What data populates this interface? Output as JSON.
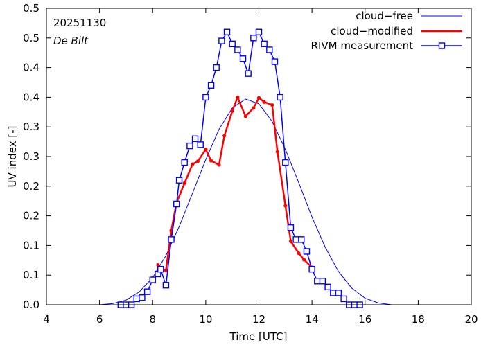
{
  "chart_data": {
    "type": "line",
    "xlabel": "Time  [UTC]",
    "ylabel": "UV index  [-]",
    "xlim": [
      4,
      20
    ],
    "ylim": [
      0,
      0.5
    ],
    "x_ticks": [
      4,
      6,
      8,
      10,
      12,
      14,
      16,
      18,
      20
    ],
    "x_tick_labels": [
      "4",
      "6",
      "8",
      "10",
      "12",
      "14",
      "16",
      "18",
      "20"
    ],
    "y_ticks": [
      0,
      0.05,
      0.1,
      0.15,
      0.2,
      0.25,
      0.3,
      0.35,
      0.4,
      0.45,
      0.5
    ],
    "y_tick_labels": [
      "0.0",
      "0.1",
      "0.1",
      "0.2",
      "0.2",
      "0.3",
      "0.3",
      "0.4",
      "0.4",
      "0.5",
      "0.5"
    ],
    "grid": false,
    "legend_position": "top-right",
    "annotations": [
      "20251130",
      "De Bilt"
    ],
    "series": [
      {
        "name": "cloud−free",
        "color": "#0000ff",
        "style": "thin-line",
        "x": [
          6.0,
          6.5,
          7.0,
          7.5,
          8.0,
          8.5,
          9.0,
          9.5,
          10.0,
          10.5,
          11.0,
          11.5,
          12.0,
          12.5,
          13.0,
          13.5,
          14.0,
          14.5,
          15.0,
          15.5,
          16.0,
          16.5,
          17.0
        ],
        "y": [
          0.0,
          0.002,
          0.008,
          0.022,
          0.046,
          0.083,
          0.132,
          0.188,
          0.245,
          0.296,
          0.332,
          0.347,
          0.339,
          0.309,
          0.262,
          0.206,
          0.148,
          0.097,
          0.056,
          0.028,
          0.011,
          0.003,
          0.0
        ]
      },
      {
        "name": "cloud−modified",
        "color": "#ff0000",
        "style": "thick-line-dots",
        "x": [
          8.2,
          8.3,
          8.5,
          8.7,
          8.9,
          9.2,
          9.5,
          9.7,
          10.0,
          10.2,
          10.5,
          10.7,
          11.0,
          11.2,
          11.5,
          11.8,
          12.0,
          12.2,
          12.5,
          12.7,
          13.0,
          13.2,
          13.5,
          13.7,
          14.0
        ],
        "y": [
          0.067,
          0.062,
          0.058,
          0.125,
          0.172,
          0.205,
          0.237,
          0.242,
          0.262,
          0.243,
          0.236,
          0.285,
          0.327,
          0.35,
          0.318,
          0.332,
          0.349,
          0.342,
          0.337,
          0.258,
          0.167,
          0.107,
          0.087,
          0.076,
          0.063
        ]
      },
      {
        "name": "RIVM measurement",
        "color": "#0000ff",
        "style": "line-squares",
        "x": [
          6.8,
          7.0,
          7.2,
          7.4,
          7.6,
          7.8,
          8.0,
          8.2,
          8.3,
          8.5,
          8.7,
          8.9,
          9.0,
          9.2,
          9.4,
          9.6,
          9.8,
          10.0,
          10.2,
          10.4,
          10.6,
          10.8,
          11.0,
          11.2,
          11.4,
          11.6,
          11.8,
          12.0,
          12.2,
          12.4,
          12.6,
          12.8,
          13.0,
          13.2,
          13.4,
          13.6,
          13.8,
          14.0,
          14.2,
          14.4,
          14.6,
          14.8,
          15.0,
          15.2,
          15.4,
          15.6,
          15.8
        ],
        "y": [
          0.0,
          0.0,
          0.0,
          0.01,
          0.012,
          0.022,
          0.042,
          0.052,
          0.06,
          0.033,
          0.11,
          0.17,
          0.21,
          0.24,
          0.268,
          0.28,
          0.27,
          0.35,
          0.37,
          0.4,
          0.445,
          0.46,
          0.44,
          0.43,
          0.415,
          0.39,
          0.45,
          0.46,
          0.44,
          0.43,
          0.41,
          0.35,
          0.24,
          0.13,
          0.11,
          0.11,
          0.09,
          0.06,
          0.04,
          0.04,
          0.03,
          0.02,
          0.02,
          0.01,
          0.0,
          0.0,
          0.0
        ]
      }
    ]
  }
}
